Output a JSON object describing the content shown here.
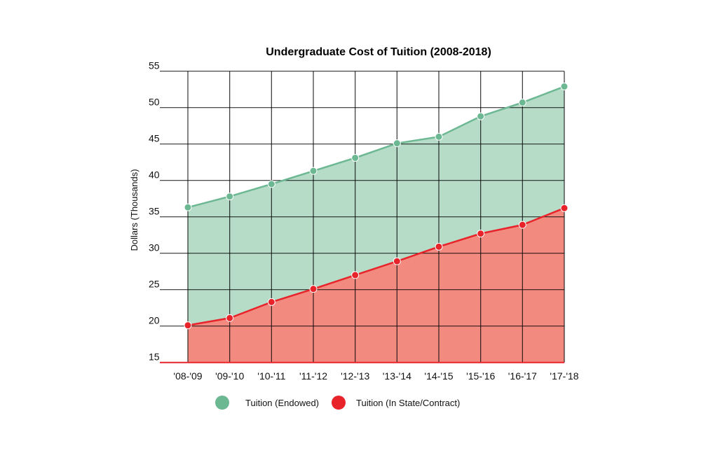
{
  "chart_data": {
    "type": "area",
    "title": "Undergraduate Cost of Tuition (2008-2018)",
    "xlabel": "",
    "ylabel": "Dollars (Thousands)",
    "ylim": [
      15,
      55
    ],
    "yticks": [
      15,
      20,
      25,
      30,
      35,
      40,
      45,
      50,
      55
    ],
    "grid": true,
    "legend_position": "bottom",
    "categories": [
      "'08-'09",
      "'09-'10",
      "'10-'11",
      "'11-'12",
      "'12-'13",
      "'13-'14",
      "'14-'15",
      "'15-'16",
      "'16-'17",
      "'17-'18"
    ],
    "series": [
      {
        "name": "Tuition (Endowed)",
        "color": "#6cb893",
        "fill": "#b6dcc8",
        "values": [
          36.3,
          37.8,
          39.5,
          41.3,
          43.1,
          45.1,
          46.0,
          48.8,
          50.7,
          52.9
        ]
      },
      {
        "name": "Tuition (In State/Contract)",
        "color": "#e8232a",
        "fill": "#f28a80",
        "values": [
          20.1,
          21.1,
          23.3,
          25.1,
          27.0,
          28.9,
          30.9,
          32.7,
          33.9,
          36.2
        ]
      }
    ]
  }
}
